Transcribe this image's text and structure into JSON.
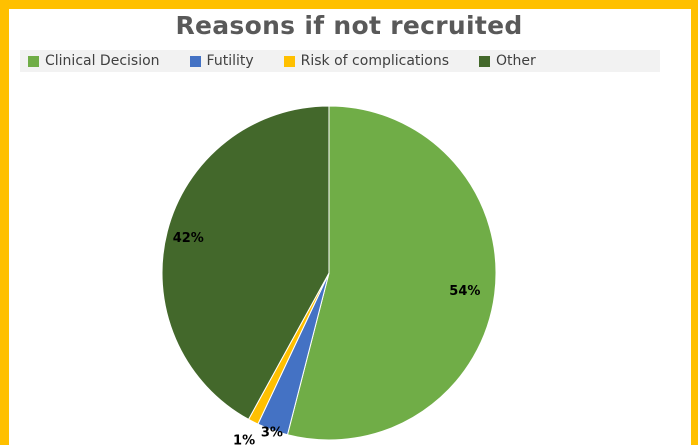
{
  "chart_data": {
    "type": "pie",
    "title": "Reasons if not recruited",
    "categories": [
      "Clinical Decision",
      "Futility",
      "Risk of complications",
      "Other"
    ],
    "values": [
      54,
      3,
      1,
      42
    ],
    "data_labels": [
      "54%",
      "3%",
      "1%",
      "42%"
    ],
    "colors": [
      "#70ad47",
      "#4472c4",
      "#ffc000",
      "#43682b"
    ],
    "legend_position": "top",
    "start_angle": "12 o'clock",
    "direction": "clockwise"
  },
  "frame_color": "#ffc000"
}
